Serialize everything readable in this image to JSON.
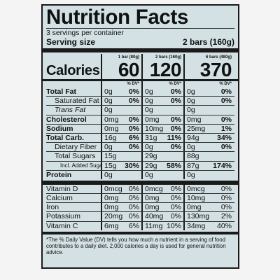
{
  "title": "Nutrition Facts",
  "servings": "3 servings per container",
  "serving_size": {
    "label": "Serving size",
    "value": "2 bars (160g)"
  },
  "columns": [
    {
      "header": "1 bar (80g)",
      "calories": "60",
      "dv_label": "% DV*"
    },
    {
      "header": "2 bars (160g)",
      "calories": "120",
      "dv_label": "% DV*"
    },
    {
      "header": "6 bars (480g)",
      "calories": "370",
      "dv_label": "% DV*"
    }
  ],
  "calories_label": "Calories",
  "nutrients": [
    {
      "label": "Total Fat",
      "style": "bold",
      "cells": [
        [
          "0g",
          "0%"
        ],
        [
          "0g",
          "0%"
        ],
        [
          "0g",
          "0%"
        ]
      ]
    },
    {
      "label": "Saturated Fat",
      "style": "indent",
      "cells": [
        [
          "0g",
          "0%"
        ],
        [
          "0g",
          "0%"
        ],
        [
          "0g",
          "0%"
        ]
      ]
    },
    {
      "label": "Trans Fat",
      "style": "indent-italic",
      "cells": [
        [
          "0g",
          ""
        ],
        [
          "0g",
          ""
        ],
        [
          "0g",
          ""
        ]
      ]
    },
    {
      "label": "Cholesterol",
      "style": "bold",
      "cells": [
        [
          "0mg",
          "0%"
        ],
        [
          "0mg",
          "0%"
        ],
        [
          "0mg",
          "0%"
        ]
      ]
    },
    {
      "label": "Sodium",
      "style": "bold",
      "cells": [
        [
          "0mg",
          "0%"
        ],
        [
          "10mg",
          "0%"
        ],
        [
          "25mg",
          "1%"
        ]
      ]
    },
    {
      "label": "Total Carb.",
      "style": "bold",
      "cells": [
        [
          "16g",
          "6%"
        ],
        [
          "31g",
          "11%"
        ],
        [
          "94g",
          "34%"
        ]
      ]
    },
    {
      "label": "Dietary Fiber",
      "style": "indent",
      "cells": [
        [
          "0g",
          "0%"
        ],
        [
          "0g",
          "0%"
        ],
        [
          "0g",
          "0%"
        ]
      ]
    },
    {
      "label": "Total Sugars",
      "style": "indent",
      "cells": [
        [
          "15g",
          ""
        ],
        [
          "29g",
          ""
        ],
        [
          "88g",
          ""
        ]
      ]
    },
    {
      "label": "Incl. Added Sugars",
      "style": "indent2",
      "cells": [
        [
          "15g",
          "30%"
        ],
        [
          "29g",
          "58%"
        ],
        [
          "87g",
          "174%"
        ]
      ]
    },
    {
      "label": "Protein",
      "style": "bold",
      "cells": [
        [
          "0g",
          ""
        ],
        [
          "0g",
          ""
        ],
        [
          "0g",
          ""
        ]
      ]
    }
  ],
  "vitamins": [
    {
      "label": "Vitamin D",
      "cells": [
        [
          "0mcg",
          "0%"
        ],
        [
          "0mcg",
          "0%"
        ],
        [
          "0mcg",
          "0%"
        ]
      ]
    },
    {
      "label": "Calcium",
      "cells": [
        [
          "0mg",
          "0%"
        ],
        [
          "0mg",
          "0%"
        ],
        [
          "10mg",
          "0%"
        ]
      ]
    },
    {
      "label": "Iron",
      "cells": [
        [
          "0mg",
          "0%"
        ],
        [
          "0mg",
          "0%"
        ],
        [
          "0mg",
          "0%"
        ]
      ]
    },
    {
      "label": "Potassium",
      "cells": [
        [
          "20mg",
          "0%"
        ],
        [
          "40mg",
          "0%"
        ],
        [
          "130mg",
          "2%"
        ]
      ]
    },
    {
      "label": "Vitamin C",
      "cells": [
        [
          "6mg",
          "6%"
        ],
        [
          "11mg",
          "10%"
        ],
        [
          "34mg",
          "40%"
        ]
      ]
    }
  ],
  "footnote": "*The % Daily Value (DV) tells you how much a nutrient in a serving of food contributes to a daily diet. 2,000 calories a day is used for general nutrition advice."
}
